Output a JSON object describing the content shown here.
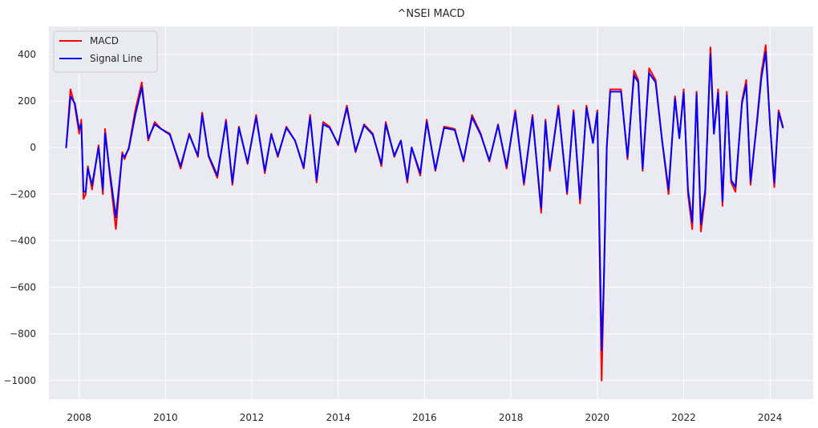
{
  "chart_data": {
    "type": "line",
    "title": "^NSEI MACD",
    "xlabel": "",
    "ylabel": "",
    "xlim": [
      2007.3,
      2025.0
    ],
    "ylim": [
      -1080,
      520
    ],
    "x_ticks": [
      2008,
      2010,
      2012,
      2014,
      2016,
      2018,
      2020,
      2022,
      2024
    ],
    "x_tick_labels": [
      "2008",
      "2010",
      "2012",
      "2014",
      "2016",
      "2018",
      "2020",
      "2022",
      "2024"
    ],
    "y_ticks": [
      400,
      200,
      0,
      -200,
      -400,
      -600,
      -800,
      -1000
    ],
    "y_tick_labels": [
      "400",
      "200",
      "0",
      "−200",
      "−400",
      "−600",
      "−800",
      "−1000"
    ],
    "grid": true,
    "legend_position": "top-left",
    "series": [
      {
        "name": "MACD",
        "color": "#ff0000",
        "x": [
          2007.7,
          2007.8,
          2007.9,
          2008.0,
          2008.05,
          2008.1,
          2008.15,
          2008.2,
          2008.3,
          2008.45,
          2008.55,
          2008.6,
          2008.7,
          2008.85,
          2009.0,
          2009.05,
          2009.15,
          2009.3,
          2009.45,
          2009.6,
          2009.75,
          2009.9,
          2010.1,
          2010.35,
          2010.55,
          2010.75,
          2010.85,
          2011.0,
          2011.2,
          2011.4,
          2011.55,
          2011.7,
          2011.9,
          2012.1,
          2012.3,
          2012.45,
          2012.6,
          2012.8,
          2013.0,
          2013.2,
          2013.35,
          2013.5,
          2013.65,
          2013.8,
          2014.0,
          2014.2,
          2014.4,
          2014.6,
          2014.8,
          2015.0,
          2015.1,
          2015.3,
          2015.45,
          2015.6,
          2015.7,
          2015.9,
          2016.05,
          2016.25,
          2016.45,
          2016.7,
          2016.9,
          2017.1,
          2017.3,
          2017.5,
          2017.7,
          2017.9,
          2018.1,
          2018.3,
          2018.5,
          2018.7,
          2018.8,
          2018.9,
          2019.1,
          2019.3,
          2019.45,
          2019.6,
          2019.75,
          2019.9,
          2020.0,
          2020.1,
          2020.15,
          2020.22,
          2020.3,
          2020.4,
          2020.55,
          2020.7,
          2020.85,
          2020.95,
          2021.05,
          2021.2,
          2021.35,
          2021.5,
          2021.65,
          2021.8,
          2021.9,
          2022.0,
          2022.1,
          2022.2,
          2022.3,
          2022.4,
          2022.5,
          2022.62,
          2022.7,
          2022.8,
          2022.9,
          2023.0,
          2023.1,
          2023.2,
          2023.35,
          2023.45,
          2023.55,
          2023.7,
          2023.8,
          2023.9,
          2024.0,
          2024.1,
          2024.2,
          2024.3
        ],
        "values": [
          0,
          250,
          180,
          60,
          120,
          -220,
          -200,
          -80,
          -180,
          10,
          -200,
          80,
          -100,
          -350,
          -20,
          -50,
          0,
          160,
          280,
          30,
          110,
          80,
          60,
          -90,
          60,
          -40,
          150,
          -40,
          -130,
          120,
          -160,
          90,
          -70,
          140,
          -110,
          60,
          -40,
          90,
          30,
          -90,
          140,
          -150,
          110,
          90,
          10,
          180,
          -20,
          100,
          60,
          -80,
          110,
          -40,
          30,
          -150,
          0,
          -120,
          120,
          -100,
          90,
          80,
          -60,
          140,
          60,
          -60,
          100,
          -90,
          160,
          -160,
          140,
          -280,
          120,
          -100,
          180,
          -200,
          160,
          -240,
          180,
          20,
          160,
          -1000,
          -600,
          0,
          250,
          250,
          250,
          -50,
          330,
          290,
          -100,
          340,
          290,
          30,
          -200,
          220,
          40,
          250,
          -200,
          -350,
          240,
          -360,
          -200,
          430,
          60,
          250,
          -250,
          240,
          -150,
          -190,
          200,
          290,
          -160,
          120,
          320,
          440,
          100,
          -170,
          160,
          90
        ]
      },
      {
        "name": "Signal Line",
        "color": "#0000ff",
        "x": [
          2007.7,
          2007.8,
          2007.9,
          2008.0,
          2008.05,
          2008.1,
          2008.15,
          2008.2,
          2008.3,
          2008.45,
          2008.55,
          2008.6,
          2008.7,
          2008.85,
          2009.0,
          2009.05,
          2009.15,
          2009.3,
          2009.45,
          2009.6,
          2009.75,
          2009.9,
          2010.1,
          2010.35,
          2010.55,
          2010.75,
          2010.85,
          2011.0,
          2011.2,
          2011.4,
          2011.55,
          2011.7,
          2011.9,
          2012.1,
          2012.3,
          2012.45,
          2012.6,
          2012.8,
          2013.0,
          2013.2,
          2013.35,
          2013.5,
          2013.65,
          2013.8,
          2014.0,
          2014.2,
          2014.4,
          2014.6,
          2014.8,
          2015.0,
          2015.1,
          2015.3,
          2015.45,
          2015.6,
          2015.7,
          2015.9,
          2016.05,
          2016.25,
          2016.45,
          2016.7,
          2016.9,
          2017.1,
          2017.3,
          2017.5,
          2017.7,
          2017.9,
          2018.1,
          2018.3,
          2018.5,
          2018.7,
          2018.8,
          2018.9,
          2019.1,
          2019.3,
          2019.45,
          2019.6,
          2019.75,
          2019.9,
          2020.0,
          2020.1,
          2020.15,
          2020.22,
          2020.3,
          2020.4,
          2020.55,
          2020.7,
          2020.85,
          2020.95,
          2021.05,
          2021.2,
          2021.35,
          2021.5,
          2021.65,
          2021.8,
          2021.9,
          2022.0,
          2022.1,
          2022.2,
          2022.3,
          2022.4,
          2022.5,
          2022.62,
          2022.7,
          2022.8,
          2022.9,
          2023.0,
          2023.1,
          2023.2,
          2023.35,
          2023.45,
          2023.55,
          2023.7,
          2023.8,
          2023.9,
          2024.0,
          2024.1,
          2024.2,
          2024.3
        ],
        "values": [
          0,
          220,
          190,
          80,
          100,
          -190,
          -190,
          -90,
          -160,
          0,
          -180,
          60,
          -90,
          -300,
          -30,
          -40,
          -5,
          140,
          260,
          40,
          100,
          80,
          55,
          -80,
          55,
          -35,
          140,
          -35,
          -120,
          110,
          -150,
          85,
          -65,
          130,
          -100,
          55,
          -35,
          85,
          30,
          -85,
          130,
          -140,
          100,
          85,
          15,
          170,
          -15,
          95,
          55,
          -70,
          100,
          -35,
          30,
          -140,
          0,
          -110,
          110,
          -95,
          85,
          75,
          -55,
          130,
          55,
          -55,
          95,
          -80,
          150,
          -150,
          130,
          -260,
          110,
          -90,
          170,
          -190,
          150,
          -220,
          170,
          20,
          150,
          -870,
          -580,
          0,
          240,
          240,
          240,
          -40,
          310,
          280,
          -90,
          320,
          280,
          30,
          -180,
          210,
          40,
          235,
          -180,
          -320,
          230,
          -330,
          -180,
          400,
          60,
          235,
          -230,
          225,
          -140,
          -170,
          190,
          270,
          -145,
          110,
          300,
          410,
          100,
          -150,
          150,
          85
        ]
      }
    ]
  }
}
